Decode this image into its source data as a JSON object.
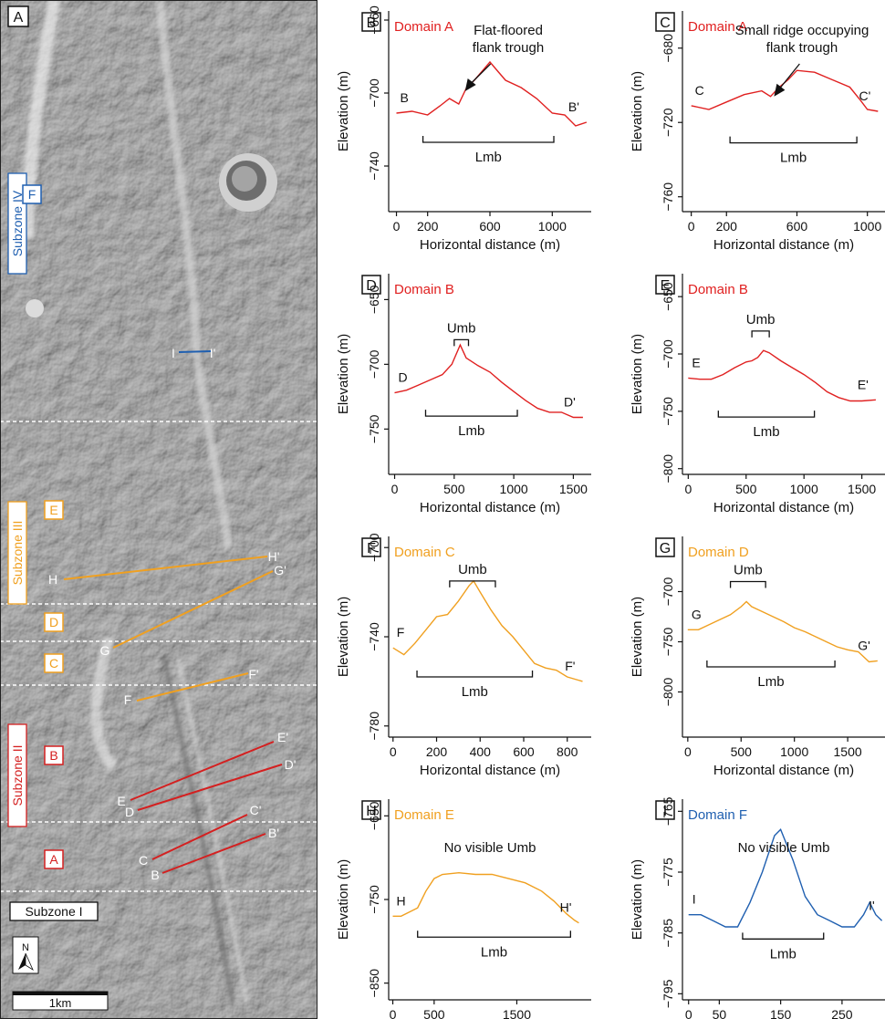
{
  "map": {
    "panel_letter": "A",
    "subzones": [
      {
        "label": "Subzone IV",
        "color": "#1f5fb0"
      },
      {
        "label": "Subzone III",
        "color": "#f0a020"
      },
      {
        "label": "Subzone II",
        "color": "#d42020"
      },
      {
        "label": "Subzone I",
        "color": "#111111"
      }
    ],
    "domain_boxes": [
      {
        "label": "F",
        "color": "#1f5fb0"
      },
      {
        "label": "E",
        "color": "#f0a020"
      },
      {
        "label": "D",
        "color": "#f0a020"
      },
      {
        "label": "C",
        "color": "#f0a020"
      },
      {
        "label": "B",
        "color": "#d42020"
      },
      {
        "label": "A",
        "color": "#d42020"
      }
    ],
    "profile_lines": [
      {
        "start": "I",
        "end": "I'",
        "color": "#1f5fb0"
      },
      {
        "start": "H",
        "end": "H'",
        "color": "#f0a020"
      },
      {
        "start": "G",
        "end": "G'",
        "color": "#f0a020"
      },
      {
        "start": "F",
        "end": "F'",
        "color": "#f0a020"
      },
      {
        "start": "E",
        "end": "E'",
        "color": "#d42020"
      },
      {
        "start": "D",
        "end": "D'",
        "color": "#d42020"
      },
      {
        "start": "C",
        "end": "C'",
        "color": "#d42020"
      },
      {
        "start": "B",
        "end": "B'",
        "color": "#d42020"
      }
    ],
    "north_label": "N",
    "scale_label": "1km"
  },
  "chart_data": [
    {
      "panel": "B",
      "type": "line",
      "title": "Domain A",
      "color": "#e02020",
      "xlabel": "Horizontal distance (m)",
      "ylabel": "Elevation (m)",
      "xlim": [
        -50,
        1250
      ],
      "ylim": [
        -765,
        -655
      ],
      "xticks": [
        0,
        200,
        600,
        1000
      ],
      "yticks": [
        -660,
        -700,
        -740
      ],
      "start_label": "B",
      "end_label": "B'",
      "lmb": [
        170,
        1010
      ],
      "lmb_label": "Lmb",
      "lmb_y": -727,
      "annotation": {
        "lines": [
          "Flat-floored",
          "flank trough"
        ],
        "target": [
          440,
          -700
        ]
      },
      "profile": [
        [
          0,
          -711
        ],
        [
          100,
          -710
        ],
        [
          200,
          -712
        ],
        [
          280,
          -707
        ],
        [
          340,
          -703
        ],
        [
          400,
          -706
        ],
        [
          450,
          -697
        ],
        [
          500,
          -693
        ],
        [
          550,
          -688
        ],
        [
          600,
          -683
        ],
        [
          650,
          -688
        ],
        [
          700,
          -693
        ],
        [
          800,
          -697
        ],
        [
          900,
          -703
        ],
        [
          1000,
          -711
        ],
        [
          1080,
          -712
        ],
        [
          1150,
          -718
        ],
        [
          1220,
          -716
        ]
      ]
    },
    {
      "panel": "C",
      "type": "line",
      "title": "Domain A",
      "color": "#e02020",
      "xlabel": "Horizontal distance (m)",
      "ylabel": "Elevation (m)",
      "xlim": [
        -50,
        1100
      ],
      "ylim": [
        -768,
        -660
      ],
      "xticks": [
        0,
        200,
        600,
        1000
      ],
      "yticks": [
        -680,
        -720,
        -760
      ],
      "start_label": "C",
      "end_label": "C'",
      "lmb": [
        220,
        940
      ],
      "lmb_label": "Lmb",
      "lmb_y": -731,
      "annotation": {
        "lines": [
          "Small ridge occupying",
          "flank trough"
        ],
        "target": [
          470,
          -707
        ]
      },
      "profile": [
        [
          0,
          -711
        ],
        [
          100,
          -713
        ],
        [
          200,
          -709
        ],
        [
          300,
          -705
        ],
        [
          400,
          -703
        ],
        [
          450,
          -706
        ],
        [
          500,
          -701
        ],
        [
          550,
          -697
        ],
        [
          600,
          -692
        ],
        [
          700,
          -693
        ],
        [
          800,
          -697
        ],
        [
          900,
          -701
        ],
        [
          960,
          -708
        ],
        [
          1000,
          -713
        ],
        [
          1060,
          -714
        ]
      ]
    },
    {
      "panel": "D",
      "type": "line",
      "title": "Domain B",
      "color": "#e02020",
      "xlabel": "Horizontal distance (m)",
      "ylabel": "Elevation (m)",
      "xlim": [
        -50,
        1650
      ],
      "ylim": [
        -785,
        -630
      ],
      "xticks": [
        0,
        500,
        1000,
        1500
      ],
      "yticks": [
        -650,
        -700,
        -750
      ],
      "start_label": "D",
      "end_label": "D'",
      "lmb": [
        260,
        1030
      ],
      "lmb_label": "Lmb",
      "lmb_y": -740,
      "umb": [
        500,
        620
      ],
      "umb_label": "Umb",
      "umb_y": -681,
      "profile": [
        [
          0,
          -722
        ],
        [
          100,
          -720
        ],
        [
          200,
          -716
        ],
        [
          300,
          -712
        ],
        [
          400,
          -708
        ],
        [
          480,
          -700
        ],
        [
          550,
          -685
        ],
        [
          600,
          -695
        ],
        [
          700,
          -701
        ],
        [
          800,
          -706
        ],
        [
          900,
          -714
        ],
        [
          1000,
          -721
        ],
        [
          1100,
          -728
        ],
        [
          1200,
          -734
        ],
        [
          1300,
          -737
        ],
        [
          1400,
          -737
        ],
        [
          1500,
          -741
        ],
        [
          1580,
          -741
        ]
      ]
    },
    {
      "panel": "E",
      "type": "line",
      "title": "Domain B",
      "color": "#e02020",
      "xlabel": "Horizontal distance (m)",
      "ylabel": "Elevation (m)",
      "xlim": [
        -50,
        1700
      ],
      "ylim": [
        -805,
        -630
      ],
      "xticks": [
        0,
        500,
        1000,
        1500
      ],
      "yticks": [
        -650,
        -700,
        -750,
        -800
      ],
      "start_label": "E",
      "end_label": "E'",
      "lmb": [
        260,
        1090
      ],
      "lmb_label": "Lmb",
      "lmb_y": -755,
      "umb": [
        550,
        700
      ],
      "umb_label": "Umb",
      "umb_y": -680,
      "profile": [
        [
          0,
          -721
        ],
        [
          100,
          -722
        ],
        [
          200,
          -722
        ],
        [
          300,
          -718
        ],
        [
          400,
          -712
        ],
        [
          500,
          -707
        ],
        [
          550,
          -706
        ],
        [
          600,
          -703
        ],
        [
          650,
          -697
        ],
        [
          700,
          -699
        ],
        [
          800,
          -706
        ],
        [
          900,
          -712
        ],
        [
          1000,
          -718
        ],
        [
          1100,
          -725
        ],
        [
          1200,
          -733
        ],
        [
          1300,
          -738
        ],
        [
          1400,
          -741
        ],
        [
          1500,
          -741
        ],
        [
          1620,
          -740
        ]
      ]
    },
    {
      "panel": "F",
      "type": "line",
      "title": "Domain C",
      "color": "#f0a020",
      "xlabel": "Horizontal distance (m)",
      "ylabel": "Elevation (m)",
      "xlim": [
        -20,
        910
      ],
      "ylim": [
        -785,
        -695
      ],
      "xticks": [
        0,
        200,
        400,
        600,
        800
      ],
      "yticks": [
        -700,
        -740,
        -780
      ],
      "start_label": "F",
      "end_label": "F'",
      "lmb": [
        110,
        640
      ],
      "lmb_label": "Lmb",
      "lmb_y": -758,
      "umb": [
        260,
        470
      ],
      "umb_label": "Umb",
      "umb_y": -715,
      "profile": [
        [
          0,
          -745
        ],
        [
          50,
          -748
        ],
        [
          100,
          -743
        ],
        [
          150,
          -737
        ],
        [
          200,
          -731
        ],
        [
          250,
          -730
        ],
        [
          300,
          -724
        ],
        [
          350,
          -717
        ],
        [
          370,
          -715
        ],
        [
          400,
          -720
        ],
        [
          450,
          -728
        ],
        [
          500,
          -735
        ],
        [
          550,
          -740
        ],
        [
          600,
          -746
        ],
        [
          650,
          -752
        ],
        [
          700,
          -754
        ],
        [
          750,
          -755
        ],
        [
          800,
          -758
        ],
        [
          870,
          -760
        ]
      ]
    },
    {
      "panel": "G",
      "type": "line",
      "title": "Domain D",
      "color": "#f0a020",
      "xlabel": "Horizontal distance (m)",
      "ylabel": "Elevation (m)",
      "xlim": [
        -50,
        1850
      ],
      "ylim": [
        -845,
        -645
      ],
      "xticks": [
        0,
        500,
        1000,
        1500
      ],
      "yticks": [
        -700,
        -750,
        -800
      ],
      "start_label": "G",
      "end_label": "G'",
      "lmb": [
        180,
        1380
      ],
      "lmb_label": "Lmb",
      "lmb_y": -775,
      "umb": [
        400,
        730
      ],
      "umb_label": "Umb",
      "umb_y": -690,
      "profile": [
        [
          0,
          -738
        ],
        [
          100,
          -738
        ],
        [
          200,
          -733
        ],
        [
          300,
          -728
        ],
        [
          400,
          -723
        ],
        [
          500,
          -715
        ],
        [
          550,
          -710
        ],
        [
          600,
          -715
        ],
        [
          700,
          -720
        ],
        [
          800,
          -725
        ],
        [
          900,
          -730
        ],
        [
          1000,
          -736
        ],
        [
          1100,
          -740
        ],
        [
          1200,
          -745
        ],
        [
          1300,
          -750
        ],
        [
          1400,
          -755
        ],
        [
          1500,
          -758
        ],
        [
          1600,
          -760
        ],
        [
          1700,
          -770
        ],
        [
          1780,
          -769
        ]
      ]
    },
    {
      "panel": "H",
      "type": "line",
      "title": "Domain E",
      "color": "#f0a020",
      "xlabel": "Horizontal distance (m)",
      "ylabel": "Elevation (m)",
      "xlim": [
        -50,
        2400
      ],
      "ylim": [
        -870,
        -630
      ],
      "xticks": [
        0,
        500,
        1500
      ],
      "yticks": [
        -650,
        -750,
        -850
      ],
      "start_label": "H",
      "end_label": "H'",
      "lmb": [
        300,
        2150
      ],
      "lmb_label": "Lmb",
      "lmb_y": -795,
      "note": "No visible Umb",
      "profile": [
        [
          0,
          -770
        ],
        [
          100,
          -770
        ],
        [
          200,
          -765
        ],
        [
          300,
          -760
        ],
        [
          400,
          -740
        ],
        [
          500,
          -725
        ],
        [
          600,
          -720
        ],
        [
          800,
          -718
        ],
        [
          1000,
          -720
        ],
        [
          1200,
          -720
        ],
        [
          1400,
          -725
        ],
        [
          1600,
          -730
        ],
        [
          1800,
          -740
        ],
        [
          1950,
          -752
        ],
        [
          2100,
          -767
        ],
        [
          2200,
          -775
        ],
        [
          2250,
          -778
        ]
      ]
    },
    {
      "panel": "I",
      "type": "line",
      "title": "Domain F",
      "color": "#1f5fb0",
      "xlabel": "Horizontal distance (m)",
      "ylabel": "Elevation (m)",
      "xlim": [
        -10,
        320
      ],
      "ylim": [
        -796,
        -763
      ],
      "xticks": [
        0,
        50,
        150,
        250
      ],
      "yticks": [
        -765,
        -775,
        -785,
        -795
      ],
      "start_label": "I",
      "end_label": "I'",
      "lmb": [
        88,
        220
      ],
      "lmb_label": "Lmb",
      "lmb_y": -786,
      "note": "No visible Umb",
      "profile": [
        [
          0,
          -782
        ],
        [
          20,
          -782
        ],
        [
          40,
          -783
        ],
        [
          60,
          -784
        ],
        [
          80,
          -784
        ],
        [
          100,
          -780
        ],
        [
          120,
          -775
        ],
        [
          140,
          -769
        ],
        [
          150,
          -768
        ],
        [
          170,
          -773
        ],
        [
          190,
          -779
        ],
        [
          210,
          -782
        ],
        [
          230,
          -783
        ],
        [
          250,
          -784
        ],
        [
          270,
          -784
        ],
        [
          285,
          -782
        ],
        [
          295,
          -780
        ],
        [
          305,
          -782
        ],
        [
          315,
          -783
        ]
      ]
    }
  ]
}
